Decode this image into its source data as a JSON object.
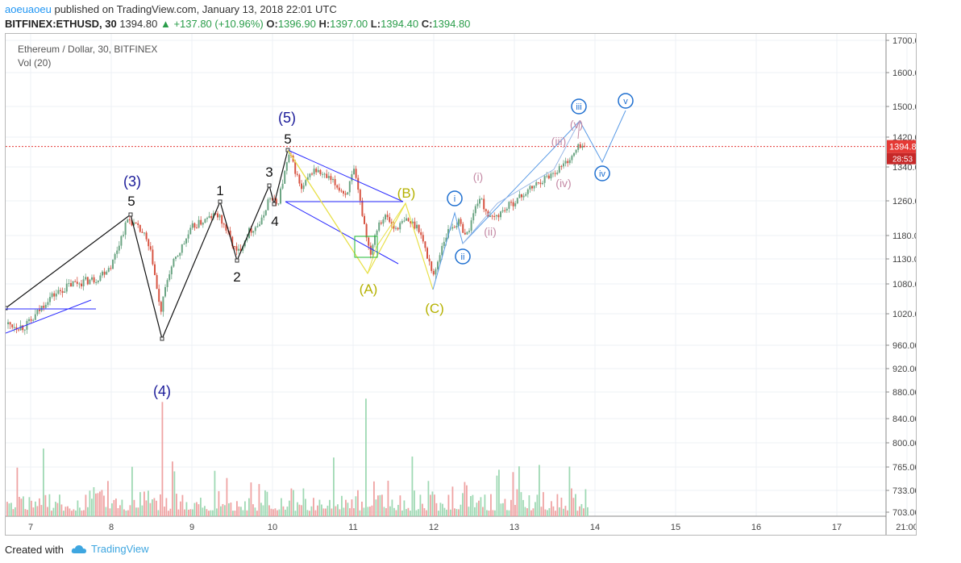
{
  "header": {
    "author": "aoeuaoeu",
    "published": "published on TradingView.com, January 13, 2018 22:01 UTC",
    "symbol": "BITFINEX:ETHUSD, 30",
    "last": "1394.80",
    "change": "+137.80 (+10.96%)",
    "o_label": "O:",
    "o": "1396.90",
    "h_label": "H:",
    "h": "1397.00",
    "l_label": "L:",
    "l": "1394.40",
    "c_label": "C:",
    "c": "1394.80"
  },
  "chart_title": "Ethereum / Dollar, 30, BITFINEX",
  "volume_label": "Vol (20)",
  "footer": {
    "created": "Created with",
    "brand": "TradingView"
  },
  "colors": {
    "up": "#6ba583",
    "down": "#d75442",
    "vol_up": "#9fd9b4",
    "vol_down": "#efa3a3",
    "last_price": "#e53935",
    "wave_blue": "#2962ff",
    "wave_yellow": "#b5b100",
    "wave_pink": "#c48aa5"
  },
  "chart_data": {
    "type": "candlestick",
    "price_axis_ticks": [
      "1700.00",
      "1600.00",
      "1500.00",
      "1420.00",
      "1340.00",
      "1260.00",
      "1180.00",
      "1130.00",
      "1080.00",
      "1020.00",
      "960.00",
      "920.00",
      "880.00",
      "840.00",
      "800.00",
      "765.00",
      "733.00",
      "703.00"
    ],
    "date_axis_ticks": [
      "7",
      "8",
      "9",
      "10",
      "11",
      "12",
      "13",
      "14",
      "15",
      "16",
      "17",
      "21:00"
    ],
    "last_price_label": "1394.80",
    "countdown_label": "28:53",
    "price_path": [
      [
        6.7,
        1000
      ],
      [
        6.9,
        995
      ],
      [
        7.0,
        1005
      ],
      [
        7.2,
        1050
      ],
      [
        7.5,
        1080
      ],
      [
        7.8,
        1090
      ],
      [
        8.0,
        1120
      ],
      [
        8.2,
        1220
      ],
      [
        8.4,
        1180
      ],
      [
        8.5,
        1130
      ],
      [
        8.6,
        1020
      ],
      [
        8.7,
        1100
      ],
      [
        9.0,
        1200
      ],
      [
        9.3,
        1230
      ],
      [
        9.4,
        1200
      ],
      [
        9.55,
        1140
      ],
      [
        9.7,
        1190
      ],
      [
        9.85,
        1210
      ],
      [
        9.95,
        1270
      ],
      [
        10.05,
        1250
      ],
      [
        10.2,
        1375
      ],
      [
        10.35,
        1285
      ],
      [
        10.5,
        1335
      ],
      [
        10.7,
        1310
      ],
      [
        10.9,
        1275
      ],
      [
        11.0,
        1330
      ],
      [
        11.1,
        1235
      ],
      [
        11.2,
        1140
      ],
      [
        11.3,
        1210
      ],
      [
        11.4,
        1225
      ],
      [
        11.5,
        1195
      ],
      [
        11.65,
        1215
      ],
      [
        11.8,
        1200
      ],
      [
        11.9,
        1140
      ],
      [
        12.0,
        1095
      ],
      [
        12.1,
        1165
      ],
      [
        12.2,
        1200
      ],
      [
        12.3,
        1210
      ],
      [
        12.4,
        1180
      ],
      [
        12.55,
        1270
      ],
      [
        12.7,
        1215
      ],
      [
        12.9,
        1245
      ],
      [
        13.1,
        1275
      ],
      [
        13.3,
        1305
      ],
      [
        13.5,
        1330
      ],
      [
        13.7,
        1365
      ],
      [
        13.8,
        1400
      ],
      [
        13.9,
        1390
      ]
    ],
    "volume_peaks": [
      {
        "x": 8.62,
        "v": 865
      },
      {
        "x": 11.15,
        "v": 870
      }
    ],
    "wave_labels": {
      "major": [
        "(3)",
        "(4)",
        "(5)"
      ],
      "minor": [
        "5",
        "1",
        "2",
        "3",
        "4",
        "5"
      ],
      "abc": [
        "(A)",
        "(B)",
        "(C)"
      ],
      "circled": [
        "i",
        "ii",
        "iii",
        "iv",
        "v"
      ],
      "sub": [
        "(i)",
        "(ii)",
        "(iii)",
        "(iv)",
        "(v)"
      ]
    }
  }
}
